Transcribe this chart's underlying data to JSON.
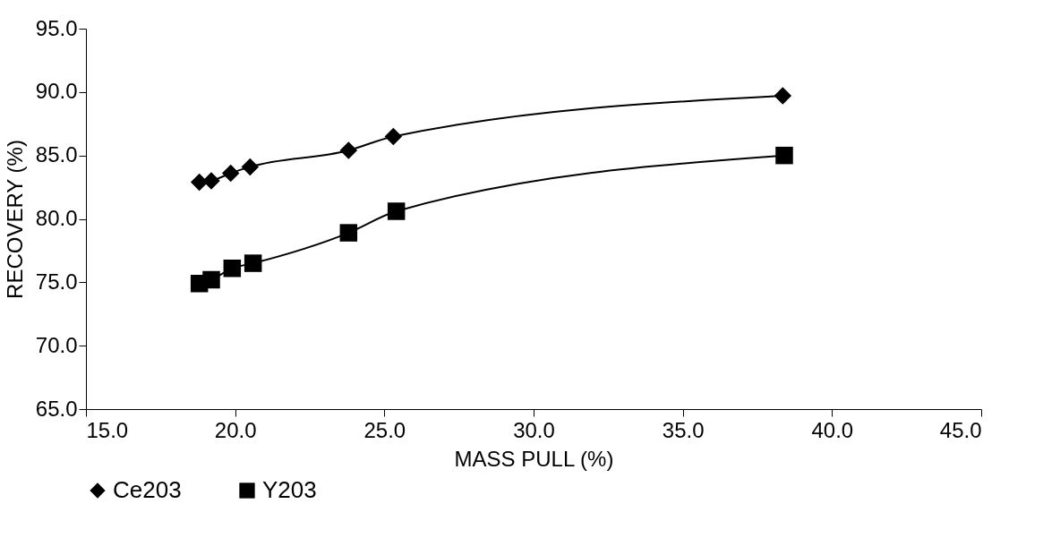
{
  "chart_data": {
    "type": "line",
    "xlabel": "MASS PULL (%)",
    "ylabel": "RECOVERY (%)",
    "series": [
      {
        "name": "Ce203",
        "color": "#000000",
        "marker": "diamond",
        "x": [
          18.8,
          19.2,
          19.85,
          20.5,
          23.8,
          25.3,
          38.35
        ],
        "values": [
          82.9,
          83.0,
          83.6,
          84.1,
          85.4,
          86.5,
          89.7
        ]
      },
      {
        "name": "Y203",
        "color": "#000000",
        "marker": "square",
        "x": [
          18.8,
          19.2,
          19.9,
          20.6,
          23.8,
          25.4,
          38.4
        ],
        "values": [
          74.9,
          75.2,
          76.1,
          76.5,
          78.9,
          80.6,
          85.0
        ]
      }
    ],
    "xlim": [
      15,
      45
    ],
    "ylim": [
      65,
      95
    ],
    "xticks": [
      {
        "value": 15,
        "label": "15.0"
      },
      {
        "value": 20,
        "label": "20.0"
      },
      {
        "value": 25,
        "label": "25.0"
      },
      {
        "value": 30,
        "label": "30.0"
      },
      {
        "value": 35,
        "label": "35.0"
      },
      {
        "value": 40,
        "label": "40.0"
      },
      {
        "value": 45,
        "label": "45.0"
      }
    ],
    "yticks": [
      {
        "value": 65,
        "label": "65.0"
      },
      {
        "value": 70,
        "label": "70.0"
      },
      {
        "value": 75,
        "label": "75.0"
      },
      {
        "value": 80,
        "label": "80.0"
      },
      {
        "value": 85,
        "label": "85.0"
      },
      {
        "value": 90,
        "label": "90.0"
      },
      {
        "value": 95,
        "label": "95.0"
      }
    ],
    "grid": false,
    "legend": "bottom",
    "line_style": "solid"
  }
}
